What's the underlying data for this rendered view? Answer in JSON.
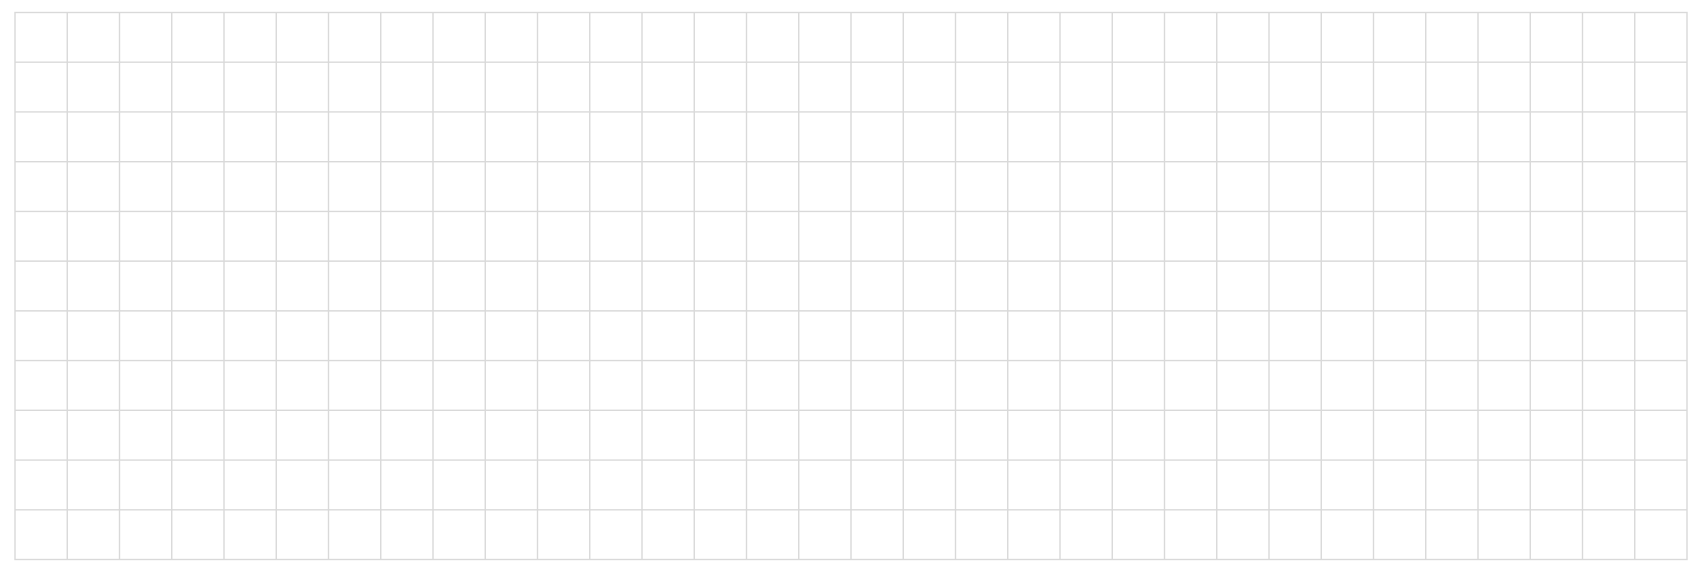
{
  "grid": {
    "columns": 32,
    "rows": 11,
    "line_color": "#d9d9d9",
    "background_color": "#ffffff"
  }
}
